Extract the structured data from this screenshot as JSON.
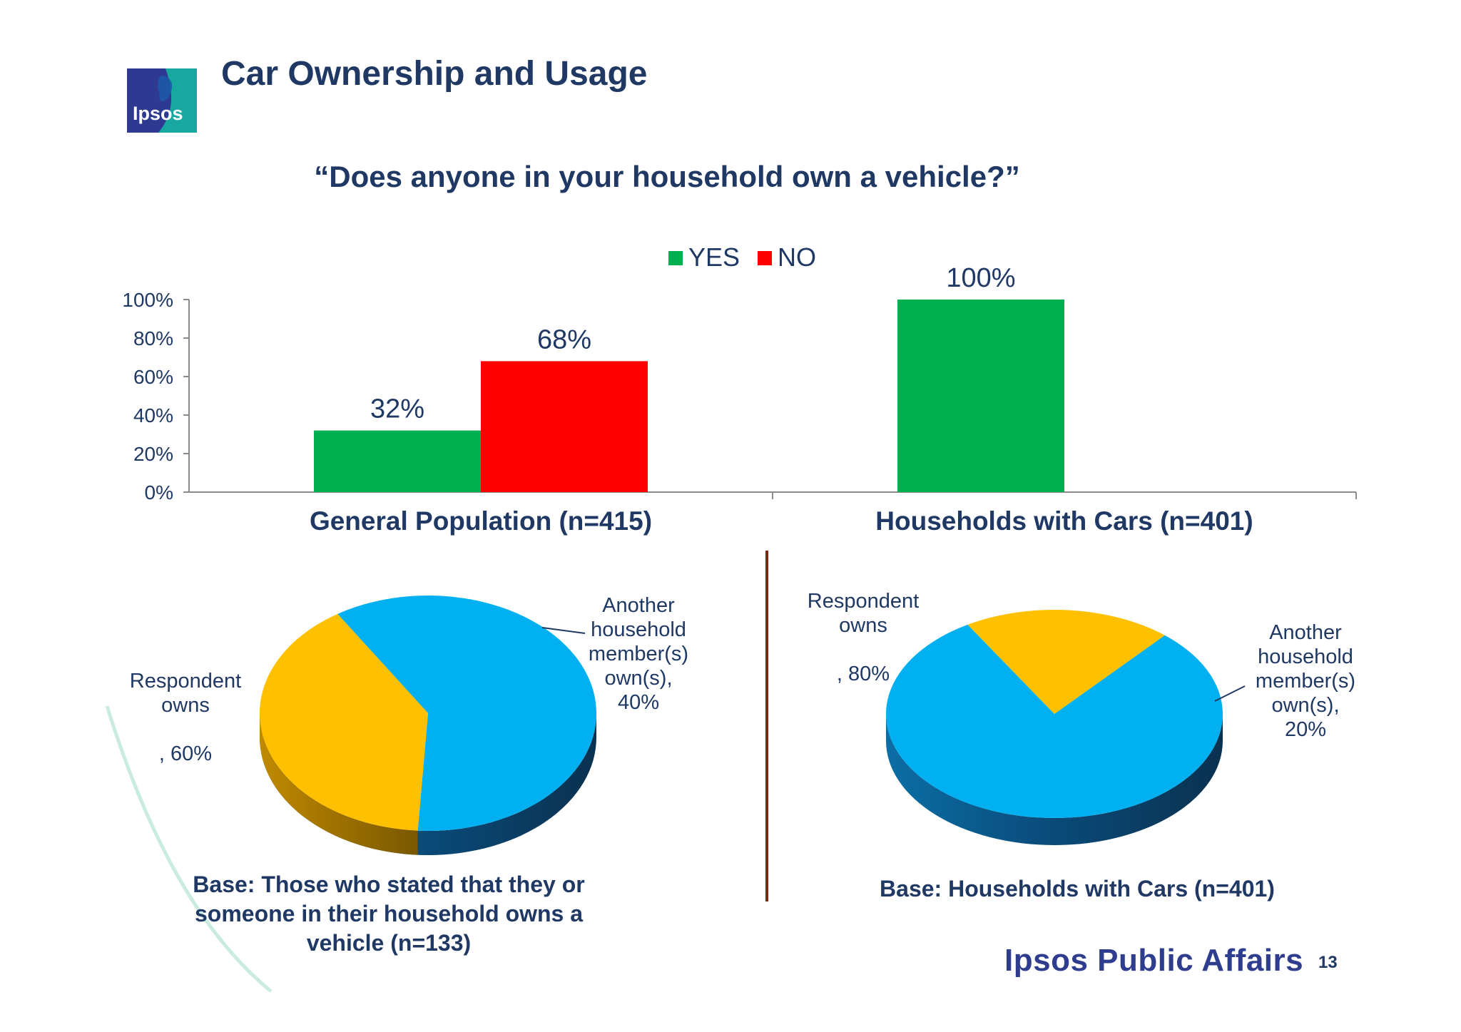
{
  "header": {
    "title": "Car Ownership and Usage",
    "logo_text": "Ipsos"
  },
  "question": "“Does anyone in your household own a vehicle?”",
  "chart_data": [
    {
      "type": "bar",
      "legend": [
        "YES",
        "NO"
      ],
      "legend_placement": "top-center",
      "categories": [
        "General Population (n=415)",
        "Households with Cars (n=401)"
      ],
      "series": [
        {
          "name": "YES",
          "color": "#00b050",
          "values": [
            32,
            100
          ]
        },
        {
          "name": "NO",
          "color": "#ff0000",
          "values": [
            68,
            null
          ]
        }
      ],
      "data_labels": [
        [
          "32%",
          "100%"
        ],
        [
          "68%",
          ""
        ]
      ],
      "yticks": [
        "0%",
        "20%",
        "40%",
        "60%",
        "80%",
        "100%"
      ],
      "ylim": [
        0,
        100
      ],
      "grid": false
    },
    {
      "type": "pie",
      "slices": [
        {
          "label_lines": [
            "Respondent",
            "owns",
            "",
            ", 60%"
          ],
          "value": 60,
          "color": "#00b0f0"
        },
        {
          "label_lines": [
            "Another",
            "household",
            "member(s)",
            "own(s),",
            "40%"
          ],
          "value": 40,
          "color": "#ffc000"
        }
      ],
      "base": "Base: Those who stated that they or someone  in their household owns a vehicle (n=133)"
    },
    {
      "type": "pie",
      "slices": [
        {
          "label_lines": [
            "Respondent",
            "owns",
            "",
            ", 80%"
          ],
          "value": 80,
          "color": "#00b0f0"
        },
        {
          "label_lines": [
            "Another",
            "household",
            "member(s)",
            "own(s),",
            "20%"
          ],
          "value": 20,
          "color": "#ffc000"
        }
      ],
      "base": "Base: Households with Cars (n=401)"
    }
  ],
  "footer": {
    "brand": "Ipsos Public Affairs",
    "page": "13"
  }
}
